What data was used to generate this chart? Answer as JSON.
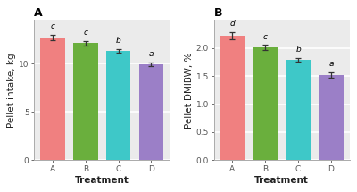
{
  "panel_A": {
    "title": "A",
    "categories": [
      "A",
      "B",
      "C",
      "D"
    ],
    "values": [
      12.7,
      12.1,
      11.35,
      9.95
    ],
    "errors": [
      0.28,
      0.22,
      0.18,
      0.18
    ],
    "ylabel": "Pellet intake, kg",
    "xlabel": "Treatment",
    "ylim": [
      0,
      14.5
    ],
    "yticks": [
      0,
      5,
      10
    ],
    "ytick_labels": [
      "0",
      "5",
      "10"
    ],
    "letters": [
      "c",
      "c",
      "b",
      "a"
    ]
  },
  "panel_B": {
    "title": "B",
    "categories": [
      "A",
      "B",
      "C",
      "D"
    ],
    "values": [
      2.22,
      2.01,
      1.79,
      1.52
    ],
    "errors": [
      0.065,
      0.048,
      0.038,
      0.052
    ],
    "ylabel": "Pellet DMIBW, %",
    "xlabel": "Treatment",
    "ylim": [
      0,
      2.5
    ],
    "yticks": [
      0.0,
      0.5,
      1.0,
      1.5,
      2.0
    ],
    "ytick_labels": [
      "0.0",
      "0.5",
      "1.0",
      "1.5",
      "2.0"
    ],
    "letters": [
      "d",
      "c",
      "b",
      "a"
    ]
  },
  "bar_colors": [
    "#F08080",
    "#6AAF3D",
    "#3EC8C8",
    "#9B7FC7"
  ],
  "background_color": "#EBEBEB",
  "grid_color": "#FFFFFF",
  "spine_color": "#AAAAAA",
  "error_color": "#333333",
  "letter_fontsize": 6.5,
  "axis_label_fontsize": 7.5,
  "tick_fontsize": 6.5,
  "title_fontsize": 9,
  "bar_width": 0.75
}
